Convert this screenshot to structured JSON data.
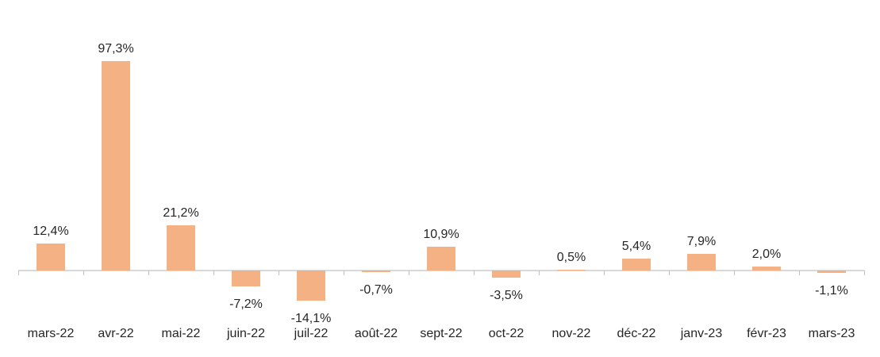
{
  "chart_data": {
    "type": "bar",
    "title": "",
    "xlabel": "",
    "ylabel": "",
    "categories": [
      "mars-22",
      "avr-22",
      "mai-22",
      "juin-22",
      "juil-22",
      "août-22",
      "sept-22",
      "oct-22",
      "nov-22",
      "déc-22",
      "janv-23",
      "févr-23",
      "mars-23"
    ],
    "values": [
      12.4,
      97.3,
      21.2,
      -7.2,
      -14.1,
      -0.7,
      10.9,
      -3.5,
      0.5,
      5.4,
      7.9,
      2.0,
      -1.1
    ],
    "value_labels": [
      "12,4%",
      "97,3%",
      "21,2%",
      "-7,2%",
      "-14,1%",
      "-0,7%",
      "10,9%",
      "-3,5%",
      "0,5%",
      "5,4%",
      "7,9%",
      "2,0%",
      "-1,1%"
    ],
    "unit": "%",
    "decimal_separator": ",",
    "ylim": [
      -20,
      110
    ],
    "grid": false,
    "legend": false,
    "data_labels": "outside-end",
    "colors": {
      "bar": "#F4B183",
      "axis_line": "#D9D9D9",
      "tick": "#BFBFBF",
      "text": "#262626",
      "background": "#FFFFFF"
    }
  }
}
